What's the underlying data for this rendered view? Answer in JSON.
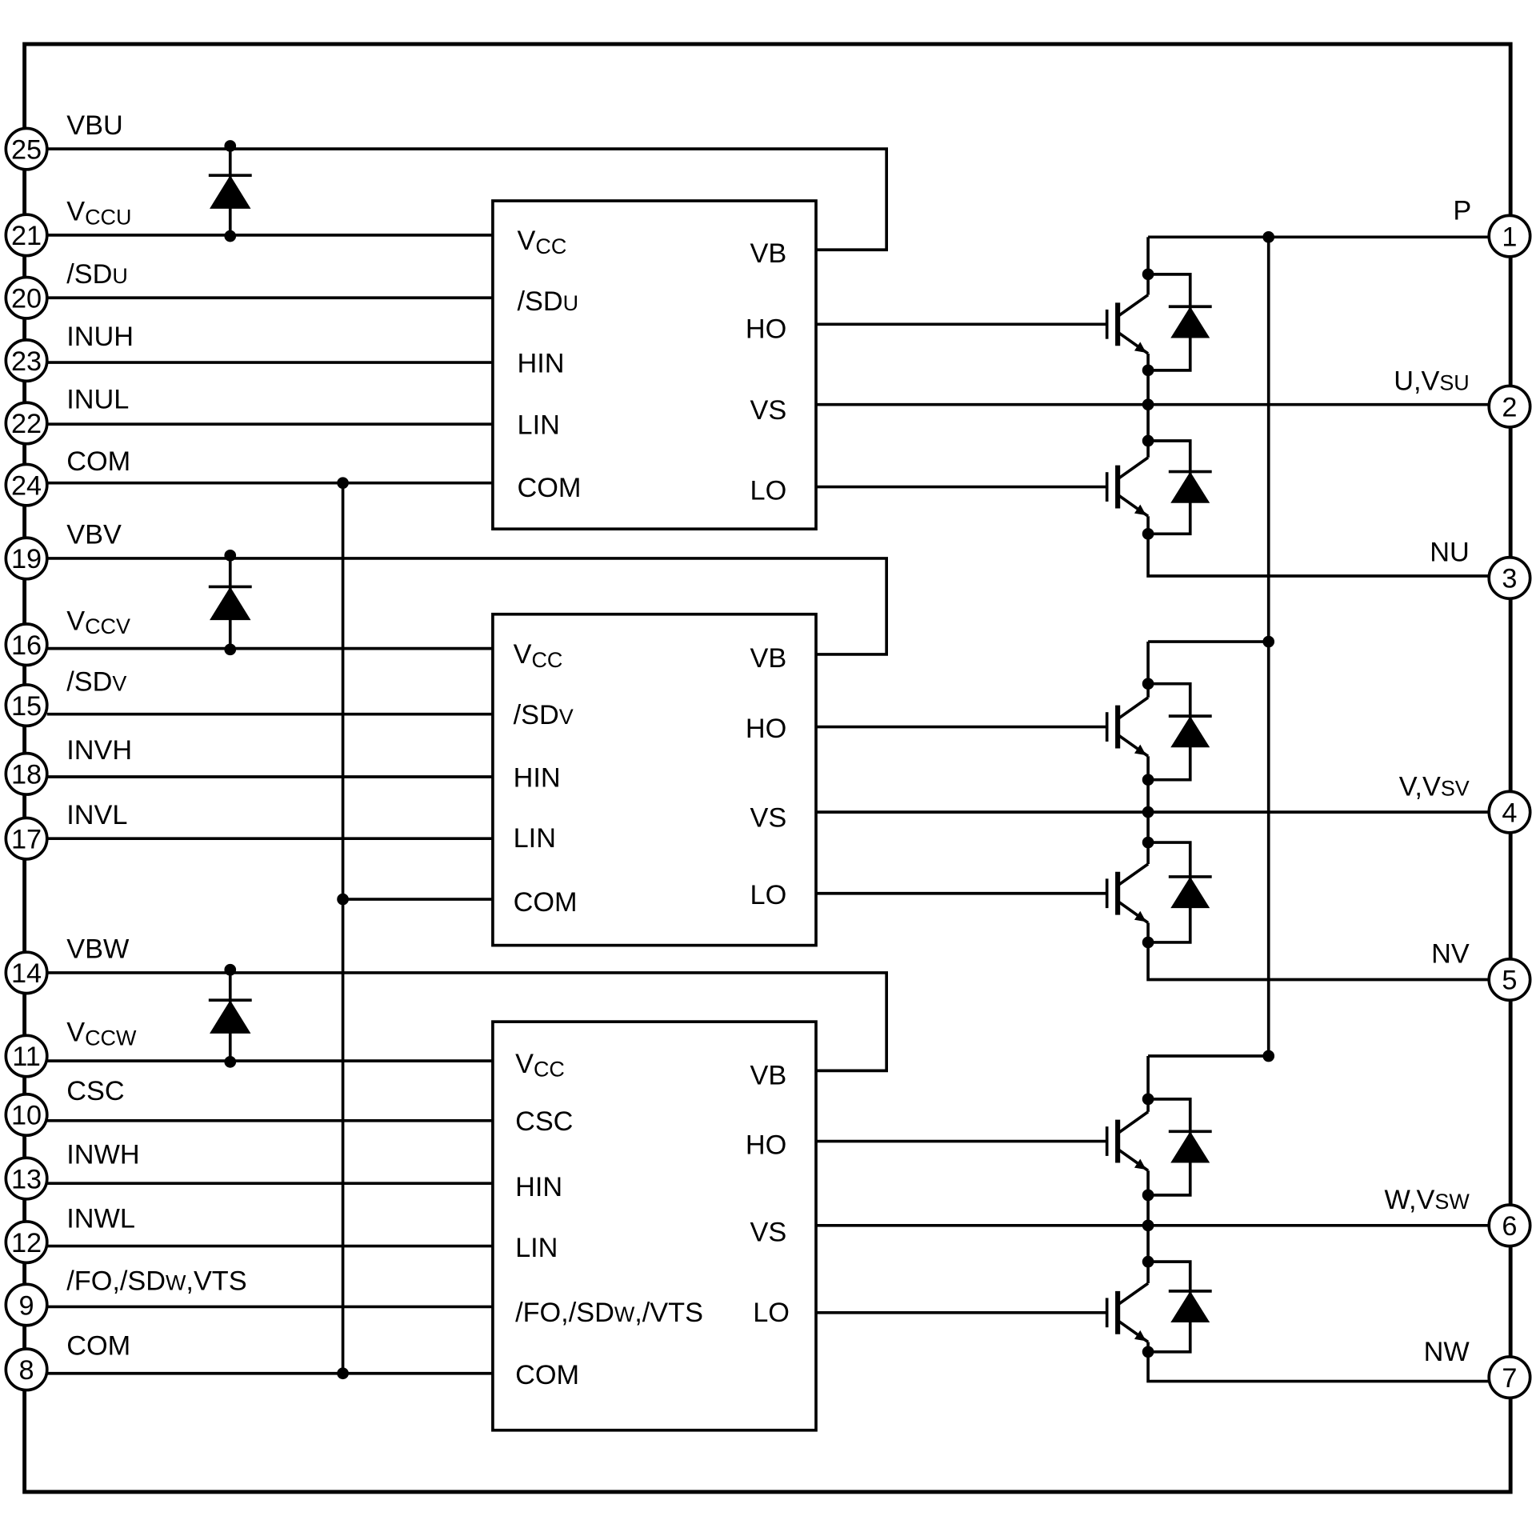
{
  "left_pins": [
    {
      "number": "25",
      "label": [
        {
          "t": "VBU"
        }
      ]
    },
    {
      "number": "21",
      "label": [
        {
          "t": "V"
        },
        {
          "t": "CCU",
          "sub": true
        }
      ]
    },
    {
      "number": "20",
      "label": [
        {
          "t": "/SD"
        },
        {
          "t": "U",
          "small": true
        }
      ]
    },
    {
      "number": "23",
      "label": [
        {
          "t": "INUH"
        }
      ]
    },
    {
      "number": "22",
      "label": [
        {
          "t": "INUL"
        }
      ]
    },
    {
      "number": "24",
      "label": [
        {
          "t": "COM"
        }
      ]
    },
    {
      "number": "19",
      "label": [
        {
          "t": "VBV"
        }
      ]
    },
    {
      "number": "16",
      "label": [
        {
          "t": "V"
        },
        {
          "t": "CCV",
          "sub": true
        }
      ]
    },
    {
      "number": "15",
      "label": [
        {
          "t": "/SD"
        },
        {
          "t": "V",
          "small": true
        }
      ]
    },
    {
      "number": "18",
      "label": [
        {
          "t": "INVH"
        }
      ]
    },
    {
      "number": "17",
      "label": [
        {
          "t": "INVL"
        }
      ]
    },
    {
      "number": "14",
      "label": [
        {
          "t": "VBW"
        }
      ]
    },
    {
      "number": "11",
      "label": [
        {
          "t": "V"
        },
        {
          "t": "CCW",
          "sub": true
        }
      ]
    },
    {
      "number": "10",
      "label": [
        {
          "t": "CSC"
        }
      ]
    },
    {
      "number": "13",
      "label": [
        {
          "t": "INWH"
        }
      ]
    },
    {
      "number": "12",
      "label": [
        {
          "t": "INWL"
        }
      ]
    },
    {
      "number": "9",
      "label": [
        {
          "t": "/FO,/SD"
        },
        {
          "t": "W",
          "small": true
        },
        {
          "t": ",VTS"
        }
      ]
    },
    {
      "number": "8",
      "label": [
        {
          "t": "COM"
        }
      ]
    }
  ],
  "right_pins": [
    {
      "number": "1",
      "label": [
        {
          "t": "P"
        }
      ]
    },
    {
      "number": "2",
      "label": [
        {
          "t": "U,V"
        },
        {
          "t": "SU",
          "small": true
        }
      ]
    },
    {
      "number": "3",
      "label": [
        {
          "t": "NU"
        }
      ]
    },
    {
      "number": "4",
      "label": [
        {
          "t": "V,V"
        },
        {
          "t": "SV",
          "small": true
        }
      ]
    },
    {
      "number": "5",
      "label": [
        {
          "t": "NV"
        }
      ]
    },
    {
      "number": "6",
      "label": [
        {
          "t": "W,V"
        },
        {
          "t": "SW",
          "small": true
        }
      ]
    },
    {
      "number": "7",
      "label": [
        {
          "t": "NW"
        }
      ]
    }
  ],
  "ics": [
    {
      "left": [
        [
          {
            "t": "V"
          },
          {
            "t": "CC",
            "sub": true
          }
        ],
        [
          {
            "t": "/SD"
          },
          {
            "t": "U",
            "small": true
          }
        ],
        [
          {
            "t": "HIN"
          }
        ],
        [
          {
            "t": "LIN"
          }
        ],
        [
          {
            "t": "COM"
          }
        ]
      ],
      "right": [
        [
          {
            "t": "VB"
          }
        ],
        [
          {
            "t": "HO"
          }
        ],
        [
          {
            "t": "VS"
          }
        ],
        [
          {
            "t": "LO"
          }
        ]
      ]
    },
    {
      "left": [
        [
          {
            "t": "V"
          },
          {
            "t": "CC",
            "sub": true
          }
        ],
        [
          {
            "t": "/SD"
          },
          {
            "t": "V",
            "small": true
          }
        ],
        [
          {
            "t": "HIN"
          }
        ],
        [
          {
            "t": "LIN"
          }
        ],
        [
          {
            "t": "COM"
          }
        ]
      ],
      "right": [
        [
          {
            "t": "VB"
          }
        ],
        [
          {
            "t": "HO"
          }
        ],
        [
          {
            "t": "VS"
          }
        ],
        [
          {
            "t": "LO"
          }
        ]
      ]
    },
    {
      "left": [
        [
          {
            "t": "V"
          },
          {
            "t": "CC",
            "sub": true
          }
        ],
        [
          {
            "t": "CSC"
          }
        ],
        [
          {
            "t": "HIN"
          }
        ],
        [
          {
            "t": "LIN"
          }
        ],
        [
          {
            "t": "/FO,/SD"
          },
          {
            "t": "W",
            "small": true
          },
          {
            "t": ",/VTS"
          }
        ],
        [
          {
            "t": "COM"
          }
        ]
      ],
      "right": [
        [
          {
            "t": "VB"
          }
        ],
        [
          {
            "t": "HO"
          }
        ],
        [
          {
            "t": "VS"
          }
        ],
        [
          {
            "t": "LO"
          }
        ]
      ]
    }
  ],
  "colors": {
    "ink": "#000000",
    "background": "#ffffff"
  }
}
